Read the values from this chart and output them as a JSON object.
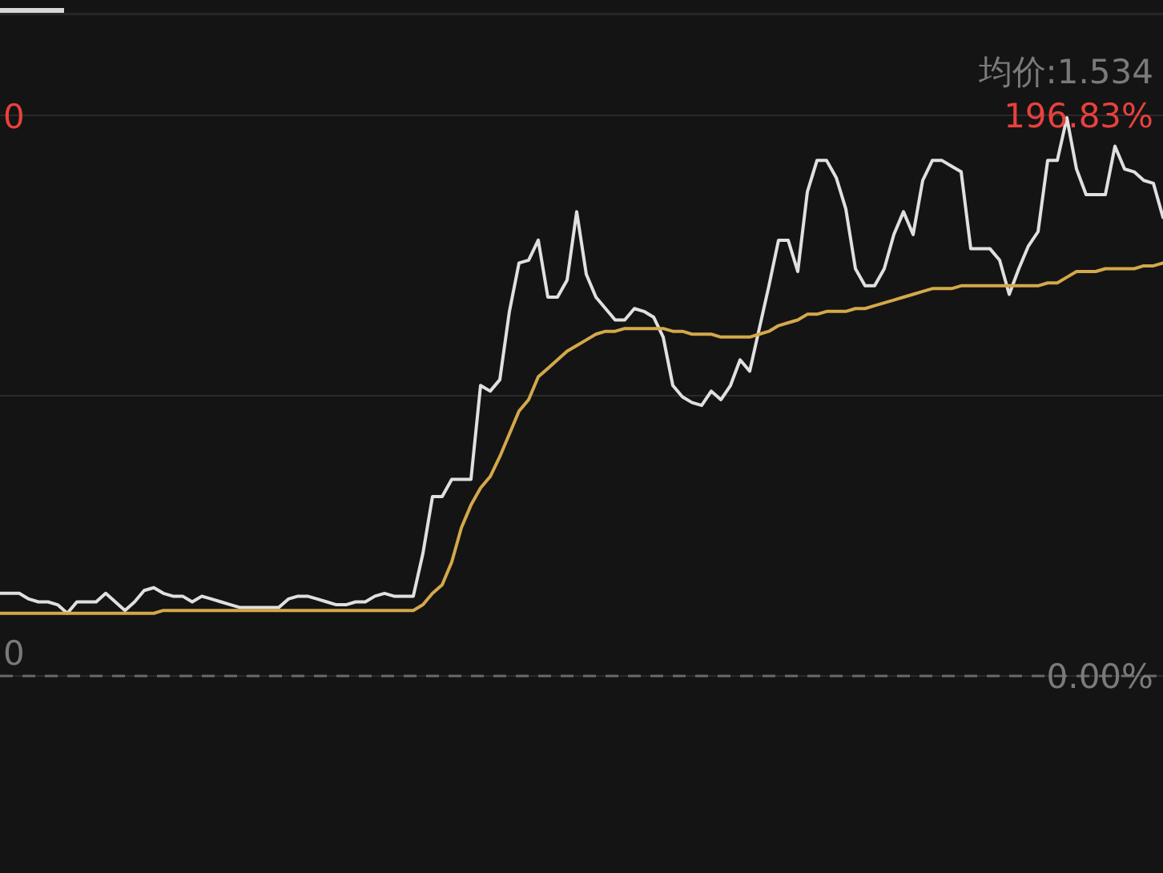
{
  "chart_data": {
    "type": "line",
    "categories": [
      null,
      null,
      null,
      null,
      null,
      null,
      null,
      null,
      null,
      null,
      null,
      null,
      null,
      null,
      null,
      null,
      null,
      null,
      null,
      null,
      null,
      null,
      null,
      null,
      null,
      null,
      null,
      null,
      null,
      null,
      null,
      null,
      null,
      null,
      null,
      null,
      null,
      null,
      null,
      null,
      null,
      null,
      null,
      null,
      null,
      null,
      null,
      null,
      null,
      null,
      null,
      null,
      null,
      null,
      null,
      null,
      null,
      null,
      null,
      null,
      null,
      null,
      null,
      null,
      null,
      null,
      null,
      null,
      null,
      null,
      null,
      null,
      null,
      null,
      null,
      null,
      null,
      null,
      null,
      null,
      null,
      null,
      null,
      null,
      null,
      null,
      null,
      null,
      null,
      null,
      null,
      null,
      null,
      null,
      null,
      null,
      null,
      null,
      null,
      null,
      null,
      null,
      null,
      null,
      null,
      null,
      null,
      null,
      null,
      null,
      null,
      null,
      null,
      null,
      null,
      null,
      null,
      null,
      null,
      null,
      null,
      null
    ],
    "series": [
      {
        "color": "#e0e0e0",
        "values": [
          29,
          29,
          29,
          27,
          26,
          26,
          25,
          22,
          26,
          26,
          26,
          29,
          26,
          23,
          26,
          30,
          31,
          29,
          28,
          28,
          26,
          28,
          27,
          26,
          25,
          24,
          24,
          24,
          24,
          24,
          27,
          28,
          28,
          27,
          26,
          25,
          25,
          26,
          26,
          28,
          29,
          28,
          28,
          28,
          43,
          63,
          63,
          69,
          69,
          69,
          102,
          100,
          104,
          128,
          145,
          146,
          153,
          133,
          133,
          139,
          163,
          141,
          133,
          129,
          125,
          125,
          129,
          128,
          126,
          119,
          102,
          98,
          96,
          95,
          100,
          97,
          102,
          111,
          107,
          122,
          137,
          153,
          153,
          142,
          170,
          181,
          181,
          175,
          164,
          143,
          137,
          137,
          143,
          155,
          163,
          155,
          174,
          181,
          181,
          179,
          177,
          150,
          150,
          150,
          146,
          134,
          143,
          151,
          156,
          181,
          181,
          196,
          178,
          169,
          169,
          169,
          186,
          178,
          177,
          174,
          173,
          161
        ]
      },
      {
        "color": "#d4a84b",
        "values": [
          22,
          22,
          22,
          22,
          22,
          22,
          22,
          22,
          22,
          22,
          22,
          22,
          22,
          22,
          22,
          22,
          22,
          23,
          23,
          23,
          23,
          23,
          23,
          23,
          23,
          23,
          23,
          23,
          23,
          23,
          23,
          23,
          23,
          23,
          23,
          23,
          23,
          23,
          23,
          23,
          23,
          23,
          23,
          23,
          25,
          29,
          32,
          40,
          52,
          60,
          66,
          70,
          77,
          85,
          93,
          97,
          105,
          108,
          111,
          114,
          116,
          118,
          120,
          121,
          121,
          122,
          122,
          122,
          122,
          122,
          121,
          121,
          120,
          120,
          120,
          119,
          119,
          119,
          119,
          120,
          121,
          123,
          124,
          125,
          127,
          127,
          128,
          128,
          128,
          129,
          129,
          130,
          131,
          132,
          133,
          134,
          135,
          136,
          136,
          136,
          137,
          137,
          137,
          137,
          137,
          137,
          137,
          137,
          137,
          138,
          138,
          140,
          142,
          142,
          142,
          143,
          143,
          143,
          143,
          144,
          144,
          145
        ]
      }
    ],
    "ylim": [
      -69.2,
      226.1
    ],
    "yticks": [
      {
        "value": 196.83,
        "label": "196.83%"
      },
      {
        "value": 98.415,
        "label": null
      },
      {
        "value": 0,
        "label": "0.00%"
      }
    ],
    "grid": "y",
    "ref_lines": [
      {
        "axis": "y",
        "value": 0,
        "line_style": "dashed",
        "color": "#6a6a6a"
      }
    ],
    "annotations": [
      "均价:1.534",
      "0",
      "0"
    ],
    "line_style": "solid"
  }
}
